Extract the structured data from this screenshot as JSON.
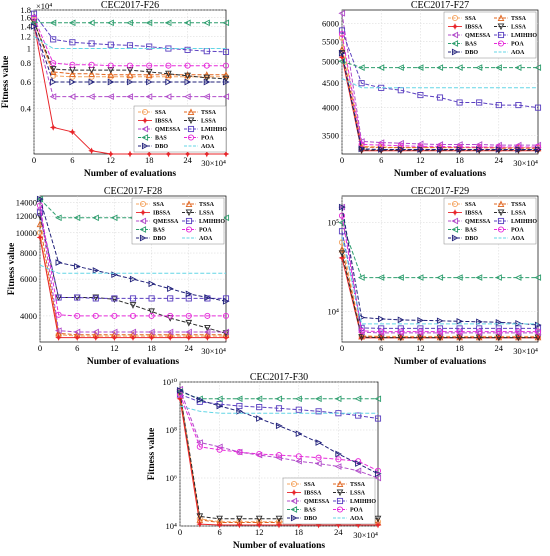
{
  "series_styles": [
    {
      "name": "SSA",
      "color": "#f4a460",
      "dash": "4 2",
      "marker": "circle"
    },
    {
      "name": "TSSA",
      "color": "#e0641e",
      "dash": "4 2",
      "marker": "triangle-up"
    },
    {
      "name": "IBSSA",
      "color": "#e8252a",
      "dash": "",
      "marker": "star"
    },
    {
      "name": "LSSA",
      "color": "#2b2b2b",
      "dash": "4 2",
      "marker": "triangle-down"
    },
    {
      "name": "QMESSA",
      "color": "#b04bc9",
      "dash": "4 2",
      "marker": "triangle-left"
    },
    {
      "name": "LMIHHO",
      "color": "#5a3fc0",
      "dash": "4 2",
      "marker": "square"
    },
    {
      "name": "BAS",
      "color": "#2e9e6e",
      "dash": "4 2",
      "marker": "triangle-left"
    },
    {
      "name": "POA",
      "color": "#e52bd9",
      "dash": "4 2",
      "marker": "circle"
    },
    {
      "name": "DBO",
      "color": "#20207a",
      "dash": "4 2",
      "marker": "triangle-right"
    },
    {
      "name": "AOA",
      "color": "#63d6e6",
      "dash": "4 2",
      "marker": "none"
    }
  ],
  "chart_data": [
    {
      "type": "line",
      "title": "CEC2017-F26",
      "xlabel": "Number of evaluations",
      "ylabel": "Fitness value",
      "x": [
        0,
        3,
        6,
        9,
        12,
        15,
        18,
        21,
        24,
        27,
        30
      ],
      "xticks": [
        "0",
        "6",
        "12",
        "18",
        "24"
      ],
      "xticks_values": [
        0,
        6,
        12,
        18,
        24
      ],
      "x_exponent": "30×10⁴",
      "xlim": [
        0,
        30
      ],
      "yscale": "log",
      "ylim": [
        0.2,
        1.8
      ],
      "yticks": [
        "0.4",
        "0.6",
        "0.8",
        "1",
        "1.2",
        "1.4",
        "1.6",
        "1.8"
      ],
      "yticks_values": [
        0.4,
        0.6,
        0.8,
        1.0,
        1.2,
        1.4,
        1.6,
        1.8
      ],
      "y_exponent": "×10⁴",
      "legend": "bottom",
      "series": [
        {
          "name": "SSA",
          "values": [
            1.55,
            0.66,
            0.65,
            0.65,
            0.65,
            0.65,
            0.65,
            0.65,
            0.65,
            0.65,
            0.65
          ]
        },
        {
          "name": "TSSA",
          "values": [
            1.5,
            0.7,
            0.68,
            0.68,
            0.67,
            0.67,
            0.67,
            0.67,
            0.67,
            0.67,
            0.67
          ]
        },
        {
          "name": "IBSSA",
          "values": [
            1.45,
            0.3,
            0.28,
            0.21,
            0.2,
            0.2,
            0.2,
            0.2,
            0.2,
            0.2,
            0.2
          ]
        },
        {
          "name": "LSSA",
          "values": [
            1.5,
            0.73,
            0.72,
            0.72,
            0.72,
            0.72,
            0.7,
            0.68,
            0.66,
            0.64,
            0.63
          ]
        },
        {
          "name": "QMESSA",
          "values": [
            1.45,
            0.48,
            0.48,
            0.48,
            0.48,
            0.48,
            0.48,
            0.48,
            0.48,
            0.48,
            0.48
          ]
        },
        {
          "name": "LMIHHO",
          "values": [
            1.7,
            1.15,
            1.1,
            1.08,
            1.06,
            1.05,
            1.03,
            1.0,
            0.98,
            0.96,
            0.95
          ]
        },
        {
          "name": "BAS",
          "values": [
            1.48,
            1.48,
            1.48,
            1.48,
            1.48,
            1.48,
            1.48,
            1.48,
            1.48,
            1.48,
            1.48
          ]
        },
        {
          "name": "POA",
          "values": [
            1.6,
            0.8,
            0.78,
            0.78,
            0.77,
            0.77,
            0.77,
            0.77,
            0.77,
            0.77,
            0.77
          ]
        },
        {
          "name": "DBO",
          "values": [
            1.4,
            0.6,
            0.6,
            0.6,
            0.6,
            0.6,
            0.6,
            0.6,
            0.6,
            0.6,
            0.6
          ]
        },
        {
          "name": "AOA",
          "values": [
            1.2,
            1.0,
            1.0,
            1.0,
            1.0,
            1.0,
            1.0,
            1.0,
            1.0,
            1.0,
            1.0
          ]
        }
      ]
    },
    {
      "type": "line",
      "title": "CEC2017-F27",
      "xlabel": "Number of evaluations",
      "ylabel": "",
      "x": [
        0,
        3,
        6,
        9,
        12,
        15,
        18,
        21,
        24,
        27,
        30
      ],
      "xticks": [
        "0",
        "6",
        "12",
        "18",
        "24"
      ],
      "xticks_values": [
        0,
        6,
        12,
        18,
        24
      ],
      "x_exponent": "30×10⁴",
      "xlim": [
        0,
        30
      ],
      "yscale": "log",
      "ylim": [
        3200,
        6400
      ],
      "yticks": [
        "3500",
        "4000",
        "4500",
        "5000",
        "5500",
        "6000"
      ],
      "yticks_values": [
        3500,
        4000,
        4500,
        5000,
        5500,
        6000
      ],
      "y_exponent": "",
      "legend": "top-right",
      "series": [
        {
          "name": "SSA",
          "values": [
            5600,
            3320,
            3310,
            3300,
            3300,
            3300,
            3300,
            3300,
            3300,
            3300,
            3300
          ]
        },
        {
          "name": "TSSA",
          "values": [
            5300,
            3310,
            3300,
            3300,
            3300,
            3300,
            3300,
            3300,
            3290,
            3290,
            3290
          ]
        },
        {
          "name": "IBSSA",
          "values": [
            5100,
            3250,
            3250,
            3250,
            3250,
            3250,
            3250,
            3250,
            3250,
            3250,
            3250
          ]
        },
        {
          "name": "LSSA",
          "values": [
            5200,
            3260,
            3260,
            3260,
            3260,
            3260,
            3260,
            3260,
            3260,
            3260,
            3260
          ]
        },
        {
          "name": "QMESSA",
          "values": [
            6300,
            3400,
            3380,
            3370,
            3360,
            3350,
            3350,
            3350,
            3340,
            3340,
            3340
          ]
        },
        {
          "name": "LMIHHO",
          "values": [
            5800,
            4500,
            4400,
            4350,
            4250,
            4200,
            4100,
            4100,
            4050,
            4050,
            4000
          ]
        },
        {
          "name": "BAS",
          "values": [
            5000,
            4850,
            4850,
            4850,
            4850,
            4850,
            4850,
            4850,
            4850,
            4850,
            4850
          ]
        },
        {
          "name": "POA",
          "values": [
            5700,
            3350,
            3340,
            3330,
            3320,
            3320,
            3310,
            3310,
            3310,
            3310,
            3310
          ]
        },
        {
          "name": "DBO",
          "values": [
            5200,
            3280,
            3270,
            3270,
            3270,
            3270,
            3270,
            3270,
            3270,
            3270,
            3270
          ]
        },
        {
          "name": "AOA",
          "values": [
            4600,
            4400,
            4400,
            4400,
            4400,
            4400,
            4400,
            4400,
            4400,
            4400,
            4400
          ]
        }
      ]
    },
    {
      "type": "line",
      "title": "CEC2017-F28",
      "xlabel": "Number of evaluations",
      "ylabel": "Fitness value",
      "x": [
        0,
        3,
        6,
        9,
        12,
        15,
        18,
        21,
        24,
        27,
        30
      ],
      "xticks": [
        "0",
        "6",
        "12",
        "18",
        "24"
      ],
      "xticks_values": [
        0,
        6,
        12,
        18,
        24
      ],
      "x_exponent": "30×10⁴",
      "xlim": [
        0,
        30
      ],
      "yscale": "log",
      "ylim": [
        3000,
        15000
      ],
      "yticks": [
        "4000",
        "6000",
        "8000",
        "10000",
        "12000",
        "14000"
      ],
      "yticks_values": [
        4000,
        6000,
        8000,
        10000,
        12000,
        14000
      ],
      "y_exponent": "",
      "legend": "top-right",
      "series": [
        {
          "name": "SSA",
          "values": [
            10000,
            3250,
            3200,
            3200,
            3200,
            3200,
            3200,
            3200,
            3200,
            3200,
            3200
          ]
        },
        {
          "name": "TSSA",
          "values": [
            11000,
            3300,
            3250,
            3250,
            3250,
            3250,
            3250,
            3250,
            3250,
            3250,
            3250
          ]
        },
        {
          "name": "IBSSA",
          "values": [
            9500,
            3150,
            3150,
            3150,
            3150,
            3150,
            3150,
            3150,
            3150,
            3150,
            3150
          ]
        },
        {
          "name": "LSSA",
          "values": [
            12000,
            4900,
            4900,
            4900,
            4800,
            4500,
            4200,
            3900,
            3700,
            3500,
            3300
          ]
        },
        {
          "name": "QMESSA",
          "values": [
            13000,
            3400,
            3350,
            3350,
            3350,
            3350,
            3350,
            3350,
            3350,
            3350,
            3350
          ]
        },
        {
          "name": "LMIHHO",
          "values": [
            12500,
            4900,
            4900,
            4850,
            4850,
            4850,
            4850,
            4850,
            4850,
            4850,
            4850
          ]
        },
        {
          "name": "BAS",
          "values": [
            14500,
            11800,
            11800,
            11800,
            11800,
            11800,
            11800,
            11800,
            11800,
            11800,
            11800
          ]
        },
        {
          "name": "POA",
          "values": [
            13500,
            4050,
            4000,
            4000,
            4000,
            4000,
            4000,
            4000,
            4000,
            4000,
            4000
          ]
        },
        {
          "name": "DBO",
          "values": [
            14500,
            7200,
            6900,
            6600,
            6300,
            6000,
            5700,
            5400,
            5100,
            4900,
            4700
          ]
        },
        {
          "name": "AOA",
          "values": [
            7000,
            6400,
            6400,
            6400,
            6400,
            6400,
            6400,
            6400,
            6400,
            6400,
            6400
          ]
        }
      ]
    },
    {
      "type": "line",
      "title": "CEC2017-F29",
      "xlabel": "Number of evaluations",
      "ylabel": "",
      "x": [
        0,
        3,
        6,
        9,
        12,
        15,
        18,
        21,
        24,
        27,
        30
      ],
      "xticks": [
        "0",
        "6",
        "12",
        "18",
        "24"
      ],
      "xticks_values": [
        0,
        6,
        12,
        18,
        24
      ],
      "x_exponent": "30×10⁴",
      "xlim": [
        0,
        30
      ],
      "yscale": "log",
      "ylim": [
        4500,
        200000
      ],
      "yticks": [
        "10⁴",
        "10⁵"
      ],
      "yticks_values": [
        10000,
        100000
      ],
      "y_exponent": "",
      "legend": "top-right",
      "series": [
        {
          "name": "SSA",
          "values": [
            60000,
            5300,
            5200,
            5200,
            5200,
            5200,
            5200,
            5200,
            5200,
            5200,
            5200
          ]
        },
        {
          "name": "TSSA",
          "values": [
            50000,
            5200,
            5100,
            5100,
            5100,
            5100,
            5100,
            5100,
            5100,
            5100,
            5100
          ]
        },
        {
          "name": "IBSSA",
          "values": [
            40000,
            5000,
            5000,
            5000,
            5000,
            5000,
            5000,
            5000,
            5000,
            5000,
            5000
          ]
        },
        {
          "name": "LSSA",
          "values": [
            45000,
            5100,
            5050,
            5050,
            5050,
            5050,
            5050,
            5050,
            5050,
            5050,
            5050
          ]
        },
        {
          "name": "QMESSA",
          "values": [
            150000,
            5800,
            5700,
            5700,
            5700,
            5700,
            5700,
            5700,
            5700,
            5700,
            5700
          ]
        },
        {
          "name": "LMIHHO",
          "values": [
            80000,
            6500,
            6400,
            6400,
            6400,
            6400,
            6400,
            6400,
            6400,
            6400,
            6400
          ]
        },
        {
          "name": "BAS",
          "values": [
            100000,
            24000,
            24000,
            24000,
            24000,
            24000,
            24000,
            24000,
            24000,
            24000,
            24000
          ]
        },
        {
          "name": "POA",
          "values": [
            120000,
            6000,
            5900,
            5900,
            5900,
            5900,
            5900,
            5900,
            5900,
            5900,
            5900
          ]
        },
        {
          "name": "DBO",
          "values": [
            150000,
            8500,
            8200,
            8000,
            7900,
            7800,
            7700,
            7600,
            7500,
            7300,
            7000
          ]
        },
        {
          "name": "AOA",
          "values": [
            70000,
            7200,
            7200,
            7200,
            7200,
            7200,
            7200,
            7200,
            7200,
            7200,
            7200
          ]
        }
      ]
    },
    {
      "type": "line",
      "title": "CEC2017-F30",
      "xlabel": "Number of evaluations",
      "ylabel": "Fitness value",
      "x": [
        0,
        3,
        6,
        9,
        12,
        15,
        18,
        21,
        24,
        27,
        30
      ],
      "xticks": [
        "0",
        "6",
        "12",
        "18",
        "24"
      ],
      "xticks_values": [
        0,
        6,
        12,
        18,
        24
      ],
      "x_exponent": "30×10⁴",
      "xlim": [
        0,
        30
      ],
      "yscale": "log",
      "ylim": [
        10000,
        10000000000
      ],
      "yticks": [
        "10⁴",
        "10⁶",
        "10⁸",
        "10¹⁰"
      ],
      "yticks_values": [
        10000,
        1000000,
        100000000,
        10000000000
      ],
      "y_exponent": "",
      "legend": "bottom",
      "series": [
        {
          "name": "SSA",
          "values": [
            4000000000,
            20000,
            15000,
            15000,
            15000,
            15000,
            15000,
            15000,
            15000,
            15000,
            15000
          ]
        },
        {
          "name": "TSSA",
          "values": [
            3000000000,
            18000,
            14000,
            14000,
            14000,
            14000,
            14000,
            14000,
            14000,
            14000,
            14000
          ]
        },
        {
          "name": "IBSSA",
          "values": [
            2000000000,
            12000,
            11000,
            11000,
            11000,
            11000,
            11000,
            11000,
            11000,
            11000,
            11000
          ]
        },
        {
          "name": "LSSA",
          "values": [
            3500000000,
            25000,
            20000,
            20000,
            20000,
            20000,
            20000,
            20000,
            20000,
            20000,
            20000
          ]
        },
        {
          "name": "QMESSA",
          "values": [
            5000000000,
            30000000,
            20000000,
            12000000,
            9000000,
            7000000,
            5000000,
            4000000,
            3000000,
            2000000,
            1000000
          ]
        },
        {
          "name": "LMIHHO",
          "values": [
            3000000000,
            1500000000,
            1200000000,
            1000000000,
            900000000,
            800000000,
            700000000,
            600000000,
            500000000,
            400000000,
            300000000
          ]
        },
        {
          "name": "BAS",
          "values": [
            4000000000,
            2000000000,
            2000000000,
            2000000000,
            2000000000,
            2000000000,
            2000000000,
            2000000000,
            2000000000,
            2000000000,
            2000000000
          ]
        },
        {
          "name": "POA",
          "values": [
            3000000000,
            20000000,
            15000000,
            12000000,
            10000000,
            9000000,
            8000000,
            7000000,
            6000000,
            5000000,
            2000000
          ]
        },
        {
          "name": "DBO",
          "values": [
            4500000000,
            1800000000,
            1000000000,
            600000000,
            300000000,
            150000000,
            70000000,
            30000000,
            10000000,
            4000000,
            1500000
          ]
        },
        {
          "name": "AOA",
          "values": [
            1000000000,
            600000000,
            500000000,
            500000000,
            500000000,
            500000000,
            500000000,
            500000000,
            500000000,
            500000000,
            500000000
          ]
        }
      ]
    }
  ]
}
